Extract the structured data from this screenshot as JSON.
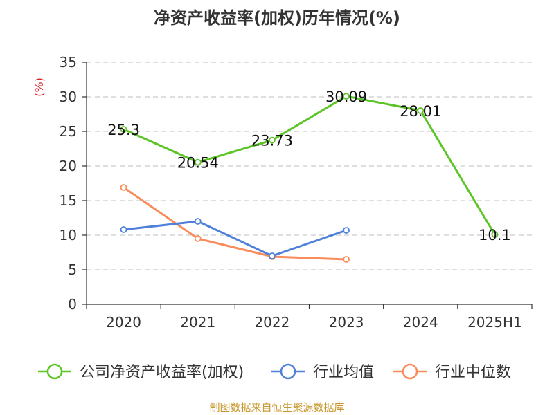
{
  "chart_data": {
    "type": "line",
    "title": "净资产收益率(加权)历年情况(%)",
    "ylabel": "(%)",
    "categories": [
      "2020",
      "2021",
      "2022",
      "2023",
      "2024",
      "2025H1"
    ],
    "ylim": [
      0,
      35
    ],
    "yticks": [
      0,
      5,
      10,
      15,
      20,
      25,
      30,
      35
    ],
    "grid": true,
    "legend_position": "bottom",
    "series": [
      {
        "name": "公司净资产收益率(加权)",
        "color": "#5cc426",
        "values": [
          25.3,
          20.54,
          23.73,
          30.09,
          28.01,
          10.1
        ],
        "labels": [
          "25.3",
          "20.54",
          "23.73",
          "30.09",
          "28.01",
          "10.1"
        ]
      },
      {
        "name": "行业均值",
        "color": "#4f81db",
        "values": [
          10.8,
          12.0,
          7.0,
          10.7,
          null,
          null
        ]
      },
      {
        "name": "行业中位数",
        "color": "#f88d5b",
        "values": [
          16.9,
          9.5,
          6.9,
          6.5,
          null,
          null
        ]
      }
    ]
  },
  "source": "制图数据来自恒生聚源数据库",
  "colors": {
    "axis": "#333333",
    "grid": "#cccccc",
    "unit": "#d9262c"
  }
}
